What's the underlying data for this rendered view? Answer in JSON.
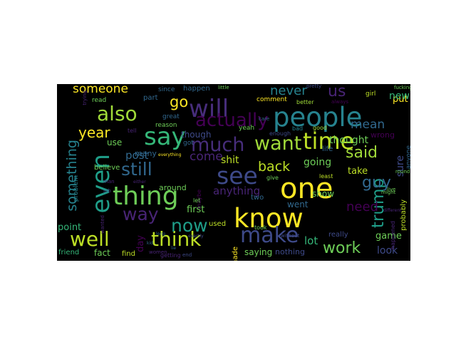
{
  "wordcloud": {
    "words": [
      {
        "text": "people",
        "color": "#26828e"
      },
      {
        "text": "one",
        "color": "#fde725"
      },
      {
        "text": "know",
        "color": "#fde725"
      },
      {
        "text": "time",
        "color": "#bddf26"
      },
      {
        "text": "thing",
        "color": "#6ece58"
      },
      {
        "text": "say",
        "color": "#35b779"
      },
      {
        "text": "even",
        "color": "#1f9e89"
      },
      {
        "text": "will",
        "color": "#472d7b"
      },
      {
        "text": "see",
        "color": "#3e4a89"
      },
      {
        "text": "make",
        "color": "#3e4a89"
      },
      {
        "text": "well",
        "color": "#bddf26"
      },
      {
        "text": "think",
        "color": "#bddf26"
      },
      {
        "text": "also",
        "color": "#a0da39"
      },
      {
        "text": "much",
        "color": "#472d7b"
      },
      {
        "text": "want",
        "color": "#a0da39"
      },
      {
        "text": "still",
        "color": "#31688e"
      },
      {
        "text": "said",
        "color": "#a0da39"
      },
      {
        "text": "something",
        "color": "#26828e"
      },
      {
        "text": "now",
        "color": "#1f9e89"
      },
      {
        "text": "actually",
        "color": "#440154"
      },
      {
        "text": "way",
        "color": "#482475"
      },
      {
        "text": "year",
        "color": "#fde725"
      },
      {
        "text": "trump",
        "color": "#1f9e89"
      },
      {
        "text": "guy",
        "color": "#31688e"
      },
      {
        "text": "never",
        "color": "#26828e"
      },
      {
        "text": "us",
        "color": "#482475"
      },
      {
        "text": "go",
        "color": "#fde725"
      },
      {
        "text": "back",
        "color": "#bddf26"
      },
      {
        "text": "work",
        "color": "#6ece58"
      },
      {
        "text": "mean",
        "color": "#31688e"
      },
      {
        "text": "need",
        "color": "#440154"
      },
      {
        "text": "someone",
        "color": "#fde725"
      },
      {
        "text": "come",
        "color": "#482475"
      },
      {
        "text": "post",
        "color": "#31688e"
      },
      {
        "text": "thought",
        "color": "#6ece58"
      },
      {
        "text": "shit",
        "color": "#bddf26"
      },
      {
        "text": "going",
        "color": "#6ece58"
      },
      {
        "text": "take",
        "color": "#bddf26"
      },
      {
        "text": "anything",
        "color": "#482475"
      },
      {
        "text": "first",
        "color": "#6ece58"
      },
      {
        "text": "lot",
        "color": "#35b779"
      },
      {
        "text": "game",
        "color": "#6ece58"
      },
      {
        "text": "look",
        "color": "#3e4a89"
      },
      {
        "text": "point",
        "color": "#35b779"
      },
      {
        "text": "made",
        "color": "#fde725"
      },
      {
        "text": "day",
        "color": "#440154"
      },
      {
        "text": "though",
        "color": "#3e4a89"
      },
      {
        "text": "used",
        "color": "#bddf26"
      },
      {
        "text": "saying",
        "color": "#6ece58"
      },
      {
        "text": "nothing",
        "color": "#3e4a89"
      },
      {
        "text": "really",
        "color": "#3e4a89"
      },
      {
        "text": "sure",
        "color": "#3e4a89"
      },
      {
        "text": "put",
        "color": "#fde725"
      },
      {
        "text": "new",
        "color": "#35b779"
      },
      {
        "text": "use",
        "color": "#6ece58"
      },
      {
        "text": "life",
        "color": "#31688e"
      },
      {
        "text": "show",
        "color": "#6ece58"
      },
      {
        "text": "fact",
        "color": "#6ece58"
      },
      {
        "text": "find",
        "color": "#bddf26"
      },
      {
        "text": "part",
        "color": "#31688e"
      },
      {
        "text": "since",
        "color": "#31688e"
      },
      {
        "text": "happen",
        "color": "#31688e"
      },
      {
        "text": "read",
        "color": "#6ece58"
      },
      {
        "text": "many",
        "color": "#31688e"
      },
      {
        "text": "around",
        "color": "#6ece58"
      },
      {
        "text": "believe",
        "color": "#6ece58"
      },
      {
        "text": "problem",
        "color": "#26828e"
      },
      {
        "text": "friend",
        "color": "#35b779"
      },
      {
        "text": "maybe",
        "color": "#440154"
      },
      {
        "text": "give",
        "color": "#6ece58"
      },
      {
        "text": "least",
        "color": "#bddf26"
      },
      {
        "text": "went",
        "color": "#31688e"
      },
      {
        "text": "took",
        "color": "#6ece58"
      },
      {
        "text": "two",
        "color": "#31688e"
      },
      {
        "text": "comment",
        "color": "#fde725"
      },
      {
        "text": "better",
        "color": "#a0da39"
      },
      {
        "text": "girl",
        "color": "#bddf26"
      },
      {
        "text": "anyone",
        "color": "#31688e"
      },
      {
        "text": "probably",
        "color": "#bddf26"
      },
      {
        "text": "happened",
        "color": "#482475"
      },
      {
        "text": "wrong",
        "color": "#440154"
      },
      {
        "text": "yeah",
        "color": "#6ece58"
      },
      {
        "text": "enough",
        "color": "#3e4a89"
      },
      {
        "text": "great",
        "color": "#31688e"
      },
      {
        "text": "reason",
        "color": "#6ece58"
      },
      {
        "text": "bad",
        "color": "#26828e"
      },
      {
        "text": "good",
        "color": "#a0da39"
      },
      {
        "text": "got",
        "color": "#31688e"
      },
      {
        "text": "let",
        "color": "#6ece58"
      },
      {
        "text": "getting",
        "color": "#482475"
      },
      {
        "text": "women",
        "color": "#482475"
      },
      {
        "text": "end",
        "color": "#3e4a89"
      },
      {
        "text": "without",
        "color": "#3e4a89"
      },
      {
        "text": "trying",
        "color": "#482475"
      },
      {
        "text": "job",
        "color": "#3e4a89"
      },
      {
        "text": "tell",
        "color": "#482475"
      },
      {
        "text": "man",
        "color": "#482475"
      },
      {
        "text": "care",
        "color": "#31688e"
      },
      {
        "text": "pretty",
        "color": "#3e4a89"
      },
      {
        "text": "always",
        "color": "#440154"
      },
      {
        "text": "little",
        "color": "#6ece58"
      },
      {
        "text": "fucking",
        "color": "#6ece58"
      },
      {
        "text": "round",
        "color": "#6ece58"
      },
      {
        "text": "might",
        "color": "#6ece58"
      },
      {
        "text": "live",
        "color": "#6ece58"
      },
      {
        "text": "wanted",
        "color": "#482475"
      },
      {
        "text": "everything",
        "color": "#fde725"
      },
      {
        "text": "long",
        "color": "#31688e"
      },
      {
        "text": "exactly",
        "color": "#3e4a89"
      },
      {
        "text": "different",
        "color": "#482475"
      },
      {
        "text": "lie",
        "color": "#31688e"
      },
      {
        "text": "kid",
        "color": "#31688e"
      },
      {
        "text": "either",
        "color": "#482475"
      }
    ]
  }
}
